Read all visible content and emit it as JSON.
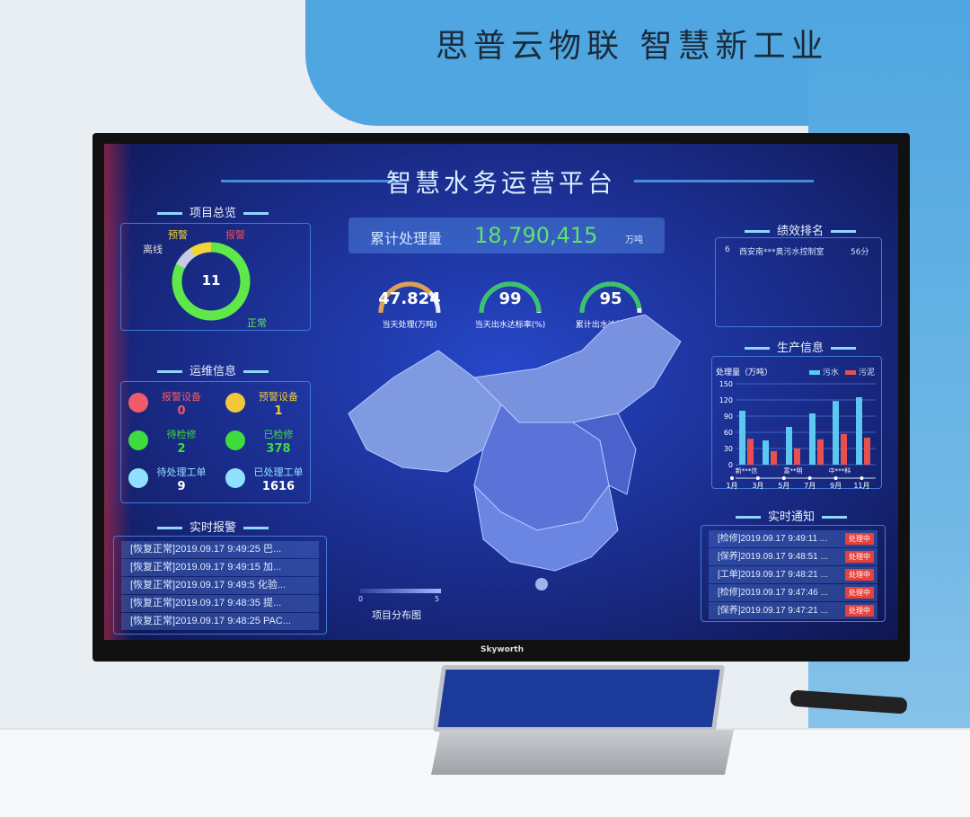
{
  "wall": {
    "slogan": "思普云物联  智慧新工业"
  },
  "tv": {
    "brand": "Skyworth"
  },
  "dashboard": {
    "title": "智慧水务运营平台",
    "total": {
      "label": "累计处理量",
      "value": "18,790,415",
      "unit": "万吨"
    },
    "gauges": [
      {
        "value": "47.824",
        "label": "当天处理(万吨)",
        "color": "#e0a050",
        "fraction": 0.75
      },
      {
        "value": "99",
        "label": "当天出水达标率(%)",
        "color": "#3ac46a",
        "fraction": 0.99
      },
      {
        "value": "95",
        "label": "累计出水达标率(%)",
        "color": "#3ac46a",
        "fraction": 0.95
      }
    ],
    "overview": {
      "title": "项目总览",
      "total": "11",
      "legend": {
        "warning": "预警",
        "alarm": "报警",
        "offline": "离线",
        "normal": "正常"
      },
      "colors": {
        "normal": "#5ee84a",
        "warning": "#f2d43a",
        "offline": "#c9c9e6",
        "alarm": "#f04a5a"
      }
    },
    "ops": {
      "title": "运维信息",
      "items": [
        {
          "label": "报警设备",
          "value": "0",
          "color": "#f05a6a",
          "icon": "alarm-device-icon"
        },
        {
          "label": "预警设备",
          "value": "1",
          "color": "#f2c83a",
          "icon": "warning-device-icon"
        },
        {
          "label": "待检修",
          "value": "2",
          "color": "#3fdc3f",
          "icon": "wrench-icon"
        },
        {
          "label": "已检修",
          "value": "378",
          "color": "#3fdc3f",
          "icon": "wrench-icon"
        },
        {
          "label": "待处理工单",
          "value": "9",
          "color": "#8fe0ff",
          "icon": "document-icon"
        },
        {
          "label": "已处理工单",
          "value": "1616",
          "color": "#8fe0ff",
          "icon": "document-icon"
        }
      ]
    },
    "alarms": {
      "title": "实时报警",
      "items": [
        "[恢复正常]2019.09.17 9:49:25 巴...",
        "[恢复正常]2019.09.17 9:49:15 加...",
        "[恢复正常]2019.09.17 9:49:5 化验...",
        "[恢复正常]2019.09.17 9:48:35 提...",
        "[恢复正常]2019.09.17 9:48:25 PAC..."
      ]
    },
    "ranking": {
      "title": "绩效排名",
      "items": [
        {
          "rank": "6",
          "name": "西安南***奥污水控制室",
          "score": "56分"
        }
      ]
    },
    "map": {
      "title": "项目分布图",
      "legend_min": "0",
      "legend_max": "5"
    },
    "production": {
      "title": "生产信息"
    },
    "notices": {
      "title": "实时通知",
      "status": "处理中",
      "items": [
        "[检修]2019.09.17 9:49:11 ...",
        "[保养]2019.09.17 9:48:51 ...",
        "[工单]2019.09.17 9:48:21 ...",
        "[检修]2019.09.17 9:47:46 ...",
        "[保养]2019.09.17 9:47:21 ..."
      ]
    }
  },
  "chart_data": {
    "type": "bar",
    "title": "处理量（万吨）",
    "categories": [
      "新***信",
      "",
      "富**明",
      "",
      "中***科",
      ""
    ],
    "series": [
      {
        "name": "污水",
        "color": "#5bc8f0",
        "values": [
          100,
          45,
          70,
          95,
          118,
          125
        ]
      },
      {
        "name": "污泥",
        "color": "#e85050",
        "values": [
          48,
          25,
          30,
          47,
          57,
          50
        ]
      }
    ],
    "ylim": [
      0,
      150
    ],
    "yticks": [
      "0",
      "30",
      "60",
      "90",
      "120",
      "150"
    ],
    "timeline": [
      "1月",
      "3月",
      "5月",
      "7月",
      "9月",
      "11月"
    ],
    "grid": true,
    "legend": "top-right"
  }
}
